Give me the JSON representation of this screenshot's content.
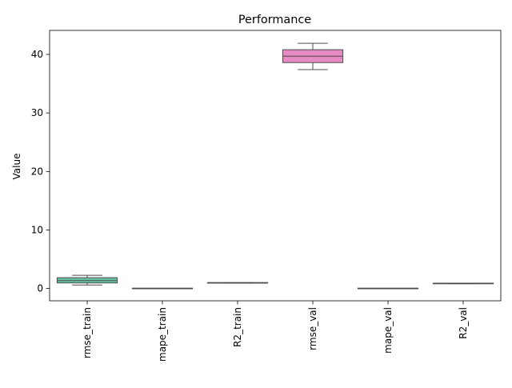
{
  "chart_data": {
    "type": "box",
    "title": "Performance",
    "xlabel": "",
    "ylabel": "Value",
    "ylim": [
      -2.1,
      44.1
    ],
    "yticks": [
      0,
      10,
      20,
      30,
      40
    ],
    "grid": false,
    "legend": "none",
    "categories": [
      "rmse_train",
      "mape_train",
      "R2_train",
      "rmse_val",
      "mape_val",
      "R2_val"
    ],
    "colors": [
      "#66c2a5",
      "#fc8d62",
      "#8da0cb",
      "#e78ac3",
      "#a6d854",
      "#ffd92f"
    ],
    "boxes": [
      {
        "min": 0.6,
        "q1": 0.95,
        "median": 1.35,
        "q3": 1.85,
        "max": 2.25
      },
      {
        "min": 0.0,
        "q1": 0.0,
        "median": 0.0,
        "q3": 0.02,
        "max": 0.02
      },
      {
        "min": 0.93,
        "q1": 0.95,
        "median": 0.97,
        "q3": 0.99,
        "max": 1.0
      },
      {
        "min": 37.4,
        "q1": 38.6,
        "median": 39.7,
        "q3": 40.8,
        "max": 41.9
      },
      {
        "min": 0.0,
        "q1": 0.0,
        "median": 0.0,
        "q3": 0.02,
        "max": 0.02
      },
      {
        "min": 0.82,
        "q1": 0.84,
        "median": 0.86,
        "q3": 0.88,
        "max": 0.9
      }
    ]
  }
}
